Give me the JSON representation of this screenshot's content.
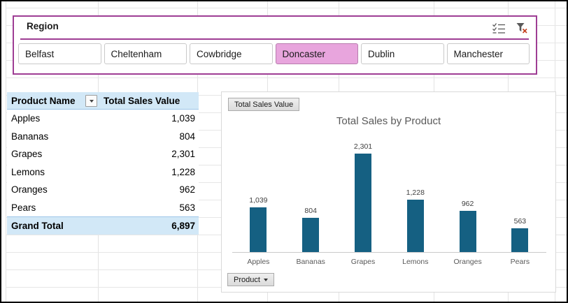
{
  "slicer": {
    "title": "Region",
    "buttons": [
      {
        "label": "Belfast",
        "selected": false
      },
      {
        "label": "Cheltenham",
        "selected": false
      },
      {
        "label": "Cowbridge",
        "selected": false
      },
      {
        "label": "Doncaster",
        "selected": true
      },
      {
        "label": "Dublin",
        "selected": false
      },
      {
        "label": "Manchester",
        "selected": false
      }
    ],
    "border_color": "#9E3D94",
    "selected_color": "#E8A5DD"
  },
  "pivot_table": {
    "columns": [
      "Product Name",
      "Total Sales Value"
    ],
    "rows": [
      {
        "product": "Apples",
        "value": "1,039"
      },
      {
        "product": "Bananas",
        "value": "804"
      },
      {
        "product": "Grapes",
        "value": "2,301"
      },
      {
        "product": "Lemons",
        "value": "1,228"
      },
      {
        "product": "Oranges",
        "value": "962"
      },
      {
        "product": "Pears",
        "value": "563"
      }
    ],
    "grand_total": {
      "label": "Grand Total",
      "value": "6,897"
    },
    "header_bg": "#D2E8F7"
  },
  "chart": {
    "value_field_button": "Total Sales Value",
    "axis_field_button": "Product",
    "title": "Total Sales by Product"
  },
  "chart_data": {
    "type": "bar",
    "title": "Total Sales by Product",
    "categories": [
      "Apples",
      "Bananas",
      "Grapes",
      "Lemons",
      "Oranges",
      "Pears"
    ],
    "values": [
      1039,
      804,
      2301,
      1228,
      962,
      563
    ],
    "data_labels": [
      "1,039",
      "804",
      "2,301",
      "1,228",
      "962",
      "563"
    ],
    "bar_color": "#156082",
    "ylim": [
      0,
      2301
    ],
    "grid": false,
    "legend": "none",
    "xlabel": "",
    "ylabel": ""
  }
}
